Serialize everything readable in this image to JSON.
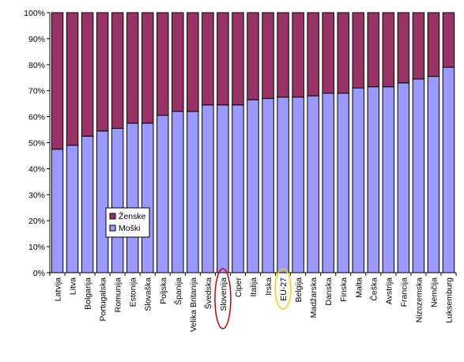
{
  "chart_data": {
    "type": "bar",
    "stacked": true,
    "percent": true,
    "categories": [
      "Latvija",
      "Litva",
      "Bolgarija",
      "Portugalska",
      "Romunija",
      "Estonija",
      "Slovaška",
      "Poljska",
      "Španija",
      "Velika Britanija",
      "Švedska",
      "Slovenija",
      "Ciper",
      "Italija",
      "Irska",
      "EU-27",
      "Belgija",
      "Madžarska",
      "Danska",
      "Finska",
      "Malta",
      "Češka",
      "Avstrija",
      "Francija",
      "Nizozemska",
      "Nemčija",
      "Luksemburg"
    ],
    "series": [
      {
        "name": "Moški",
        "color": "#9999ff",
        "values": [
          47.5,
          49,
          52.5,
          54.5,
          55.5,
          57.5,
          57.5,
          60.5,
          62,
          62,
          64.5,
          64.5,
          64.5,
          66.5,
          67,
          67.5,
          67.5,
          68,
          69,
          69,
          71,
          71.5,
          71.5,
          73,
          74.5,
          75.5,
          79
        ]
      },
      {
        "name": "Ženske",
        "color": "#993366",
        "values": [
          52.5,
          51,
          47.5,
          45.5,
          44.5,
          42.5,
          42.5,
          39.5,
          38,
          38,
          35.5,
          35.5,
          35.5,
          33.5,
          33,
          32.5,
          32.5,
          32,
          31,
          31,
          29,
          28.5,
          28.5,
          27,
          25.5,
          24.5,
          21
        ]
      }
    ],
    "yticks": [
      "0%",
      "10%",
      "20%",
      "30%",
      "40%",
      "50%",
      "60%",
      "70%",
      "80%",
      "90%",
      "100%"
    ],
    "ylim": [
      0,
      100
    ],
    "legend": {
      "placement": "middle-left",
      "order": [
        "Ženske",
        "Moški"
      ]
    },
    "highlights": [
      {
        "category": "Slovenija",
        "color": "#cc0000"
      },
      {
        "category": "EU-27",
        "color": "#ffcc00"
      }
    ],
    "grid": false
  }
}
